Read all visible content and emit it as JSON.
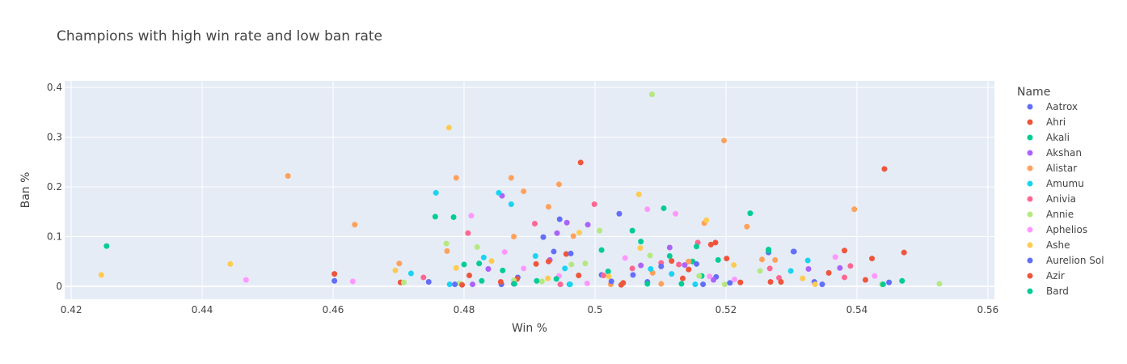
{
  "chart_data": {
    "type": "scatter",
    "title": "Champions with high win rate and low ban rate",
    "xlabel": "Win %",
    "ylabel": "Ban %",
    "xlim": [
      0.419,
      0.561
    ],
    "ylim": [
      -0.026,
      0.413
    ],
    "xticks": [
      0.42,
      0.44,
      0.46,
      0.48,
      0.5,
      0.52,
      0.54,
      0.56
    ],
    "xtick_labels": [
      "0.42",
      "0.44",
      "0.46",
      "0.48",
      "0.5",
      "0.52",
      "0.54",
      "0.56"
    ],
    "yticks": [
      0,
      0.1,
      0.2,
      0.3,
      0.4
    ],
    "ytick_labels": [
      "0",
      "0.1",
      "0.2",
      "0.3",
      "0.4"
    ],
    "grid": true,
    "plot_background": "#e5ecf6",
    "legend": {
      "title": "Name",
      "placement": "right"
    },
    "series": [
      {
        "name": "Aatrox",
        "color": "#636efa",
        "points": [
          [
            0.4602,
            0.011
          ],
          [
            0.4746,
            0.009
          ],
          [
            0.4857,
            0.004
          ],
          [
            0.4882,
            0.018
          ],
          [
            0.4921,
            0.099
          ],
          [
            0.4946,
            0.135
          ],
          [
            0.501,
            0.023
          ],
          [
            0.5037,
            0.146
          ],
          [
            0.508,
            0.009
          ],
          [
            0.5165,
            0.004
          ],
          [
            0.5185,
            0.019
          ],
          [
            0.5265,
            0.068
          ],
          [
            0.5304,
            0.07
          ],
          [
            0.5335,
            0.009
          ],
          [
            0.5449,
            0.008
          ]
        ]
      },
      {
        "name": "Ahri",
        "color": "#ef553b",
        "points": [
          [
            0.4602,
            0.025
          ],
          [
            0.4703,
            0.008
          ],
          [
            0.4808,
            0.022
          ],
          [
            0.4856,
            0.009
          ],
          [
            0.4881,
            0.015
          ],
          [
            0.491,
            0.045
          ],
          [
            0.4956,
            0.065
          ],
          [
            0.4978,
            0.249
          ],
          [
            0.504,
            0.003
          ],
          [
            0.5134,
            0.016
          ],
          [
            0.5177,
            0.084
          ],
          [
            0.5184,
            0.088
          ],
          [
            0.5222,
            0.008
          ],
          [
            0.5381,
            0.072
          ],
          [
            0.5413,
            0.013
          ],
          [
            0.5442,
            0.236
          ],
          [
            0.5472,
            0.068
          ]
        ]
      },
      {
        "name": "Akali",
        "color": "#00cc96",
        "points": [
          [
            0.4254,
            0.081
          ],
          [
            0.4756,
            0.14
          ],
          [
            0.4784,
            0.139
          ],
          [
            0.48,
            0.044
          ],
          [
            0.4823,
            0.046
          ],
          [
            0.4859,
            0.032
          ],
          [
            0.4911,
            0.011
          ],
          [
            0.4961,
            0.004
          ],
          [
            0.502,
            0.03
          ],
          [
            0.5057,
            0.112
          ],
          [
            0.508,
            0.005
          ],
          [
            0.5105,
            0.157
          ],
          [
            0.5132,
            0.005
          ],
          [
            0.5149,
            0.05
          ],
          [
            0.5163,
            0.021
          ],
          [
            0.5237,
            0.147
          ],
          [
            0.5265,
            0.074
          ],
          [
            0.5469,
            0.011
          ]
        ]
      },
      {
        "name": "Akshan",
        "color": "#ab63fa",
        "points": [
          [
            0.4813,
            0.004
          ],
          [
            0.4837,
            0.035
          ],
          [
            0.4858,
            0.182
          ],
          [
            0.4931,
            0.053
          ],
          [
            0.4942,
            0.107
          ],
          [
            0.4957,
            0.128
          ],
          [
            0.4989,
            0.124
          ],
          [
            0.507,
            0.042
          ],
          [
            0.5114,
            0.078
          ],
          [
            0.5137,
            0.043
          ],
          [
            0.5181,
            0.013
          ],
          [
            0.5326,
            0.035
          ],
          [
            0.5374,
            0.037
          ]
        ]
      },
      {
        "name": "Alistar",
        "color": "#ffa15a",
        "points": [
          [
            0.4531,
            0.222
          ],
          [
            0.4633,
            0.124
          ],
          [
            0.4701,
            0.046
          ],
          [
            0.4774,
            0.071
          ],
          [
            0.4788,
            0.218
          ],
          [
            0.4872,
            0.218
          ],
          [
            0.4876,
            0.1
          ],
          [
            0.4891,
            0.191
          ],
          [
            0.4929,
            0.16
          ],
          [
            0.4945,
            0.205
          ],
          [
            0.4967,
            0.101
          ],
          [
            0.5024,
            0.004
          ],
          [
            0.5088,
            0.027
          ],
          [
            0.5101,
            0.005
          ],
          [
            0.5143,
            0.05
          ],
          [
            0.5167,
            0.127
          ],
          [
            0.5197,
            0.293
          ],
          [
            0.5232,
            0.12
          ],
          [
            0.5255,
            0.054
          ],
          [
            0.5275,
            0.053
          ],
          [
            0.5396,
            0.155
          ]
        ]
      },
      {
        "name": "Amumu",
        "color": "#19d3f3",
        "points": [
          [
            0.4719,
            0.026
          ],
          [
            0.4757,
            0.188
          ],
          [
            0.4778,
            0.004
          ],
          [
            0.483,
            0.058
          ],
          [
            0.4853,
            0.188
          ],
          [
            0.4872,
            0.165
          ],
          [
            0.4909,
            0.061
          ],
          [
            0.4954,
            0.036
          ],
          [
            0.4962,
            0.004
          ],
          [
            0.5085,
            0.035
          ],
          [
            0.5117,
            0.025
          ],
          [
            0.5153,
            0.004
          ],
          [
            0.5299,
            0.031
          ],
          [
            0.5325,
            0.052
          ]
        ]
      },
      {
        "name": "Anivia",
        "color": "#ff6692",
        "points": [
          [
            0.4738,
            0.018
          ],
          [
            0.4806,
            0.107
          ],
          [
            0.4908,
            0.126
          ],
          [
            0.4947,
            0.004
          ],
          [
            0.4999,
            0.165
          ],
          [
            0.5013,
            0.022
          ],
          [
            0.5057,
            0.036
          ],
          [
            0.5101,
            0.047
          ],
          [
            0.5128,
            0.044
          ],
          [
            0.5157,
            0.088
          ],
          [
            0.5267,
            0.036
          ],
          [
            0.5281,
            0.017
          ],
          [
            0.5381,
            0.018
          ],
          [
            0.539,
            0.041
          ]
        ]
      },
      {
        "name": "Annie",
        "color": "#b6e880",
        "points": [
          [
            0.4708,
            0.008
          ],
          [
            0.4773,
            0.086
          ],
          [
            0.4793,
            0.006
          ],
          [
            0.482,
            0.079
          ],
          [
            0.4876,
            0.012
          ],
          [
            0.4919,
            0.01
          ],
          [
            0.4964,
            0.044
          ],
          [
            0.4985,
            0.046
          ],
          [
            0.5007,
            0.112
          ],
          [
            0.5084,
            0.062
          ],
          [
            0.5087,
            0.386
          ],
          [
            0.5159,
            0.021
          ],
          [
            0.5198,
            0.004
          ],
          [
            0.5252,
            0.031
          ],
          [
            0.5438,
            0.004
          ],
          [
            0.5526,
            0.005
          ]
        ]
      },
      {
        "name": "Aphelios",
        "color": "#ff97ff",
        "points": [
          [
            0.4467,
            0.013
          ],
          [
            0.463,
            0.01
          ],
          [
            0.4811,
            0.142
          ],
          [
            0.4862,
            0.069
          ],
          [
            0.4891,
            0.036
          ],
          [
            0.4945,
            0.021
          ],
          [
            0.4988,
            0.006
          ],
          [
            0.5046,
            0.057
          ],
          [
            0.508,
            0.155
          ],
          [
            0.5123,
            0.146
          ],
          [
            0.5175,
            0.02
          ],
          [
            0.5213,
            0.014
          ],
          [
            0.5367,
            0.059
          ],
          [
            0.5427,
            0.021
          ]
        ]
      },
      {
        "name": "Ashe",
        "color": "#fecb52",
        "points": [
          [
            0.4246,
            0.023
          ],
          [
            0.4443,
            0.045
          ],
          [
            0.4695,
            0.032
          ],
          [
            0.4777,
            0.319
          ],
          [
            0.4788,
            0.037
          ],
          [
            0.4842,
            0.051
          ],
          [
            0.4928,
            0.016
          ],
          [
            0.4976,
            0.108
          ],
          [
            0.5021,
            0.02
          ],
          [
            0.5067,
            0.185
          ],
          [
            0.5069,
            0.077
          ],
          [
            0.517,
            0.133
          ],
          [
            0.5212,
            0.043
          ],
          [
            0.5317,
            0.016
          ],
          [
            0.5336,
            0.004
          ]
        ]
      },
      {
        "name": "Aurelion Sol",
        "color": "#636efa",
        "points": [
          [
            0.4786,
            0.004
          ],
          [
            0.4876,
            0.005
          ],
          [
            0.4937,
            0.07
          ],
          [
            0.4963,
            0.066
          ],
          [
            0.5025,
            0.01
          ],
          [
            0.5058,
            0.023
          ],
          [
            0.5101,
            0.04
          ],
          [
            0.5155,
            0.045
          ],
          [
            0.5206,
            0.007
          ],
          [
            0.5303,
            0.07
          ],
          [
            0.5347,
            0.004
          ]
        ]
      },
      {
        "name": "Azir",
        "color": "#ef553b",
        "points": [
          [
            0.4797,
            0.003
          ],
          [
            0.4929,
            0.05
          ],
          [
            0.4975,
            0.022
          ],
          [
            0.5043,
            0.007
          ],
          [
            0.5117,
            0.051
          ],
          [
            0.5143,
            0.034
          ],
          [
            0.5201,
            0.056
          ],
          [
            0.5268,
            0.009
          ],
          [
            0.5284,
            0.009
          ],
          [
            0.5357,
            0.027
          ],
          [
            0.5423,
            0.056
          ]
        ]
      },
      {
        "name": "Bard",
        "color": "#00cc96",
        "points": [
          [
            0.4827,
            0.011
          ],
          [
            0.4877,
            0.005
          ],
          [
            0.4941,
            0.015
          ],
          [
            0.501,
            0.073
          ],
          [
            0.507,
            0.09
          ],
          [
            0.5114,
            0.061
          ],
          [
            0.5155,
            0.08
          ],
          [
            0.5188,
            0.053
          ],
          [
            0.5265,
            0.072
          ],
          [
            0.544,
            0.004
          ]
        ]
      }
    ]
  }
}
